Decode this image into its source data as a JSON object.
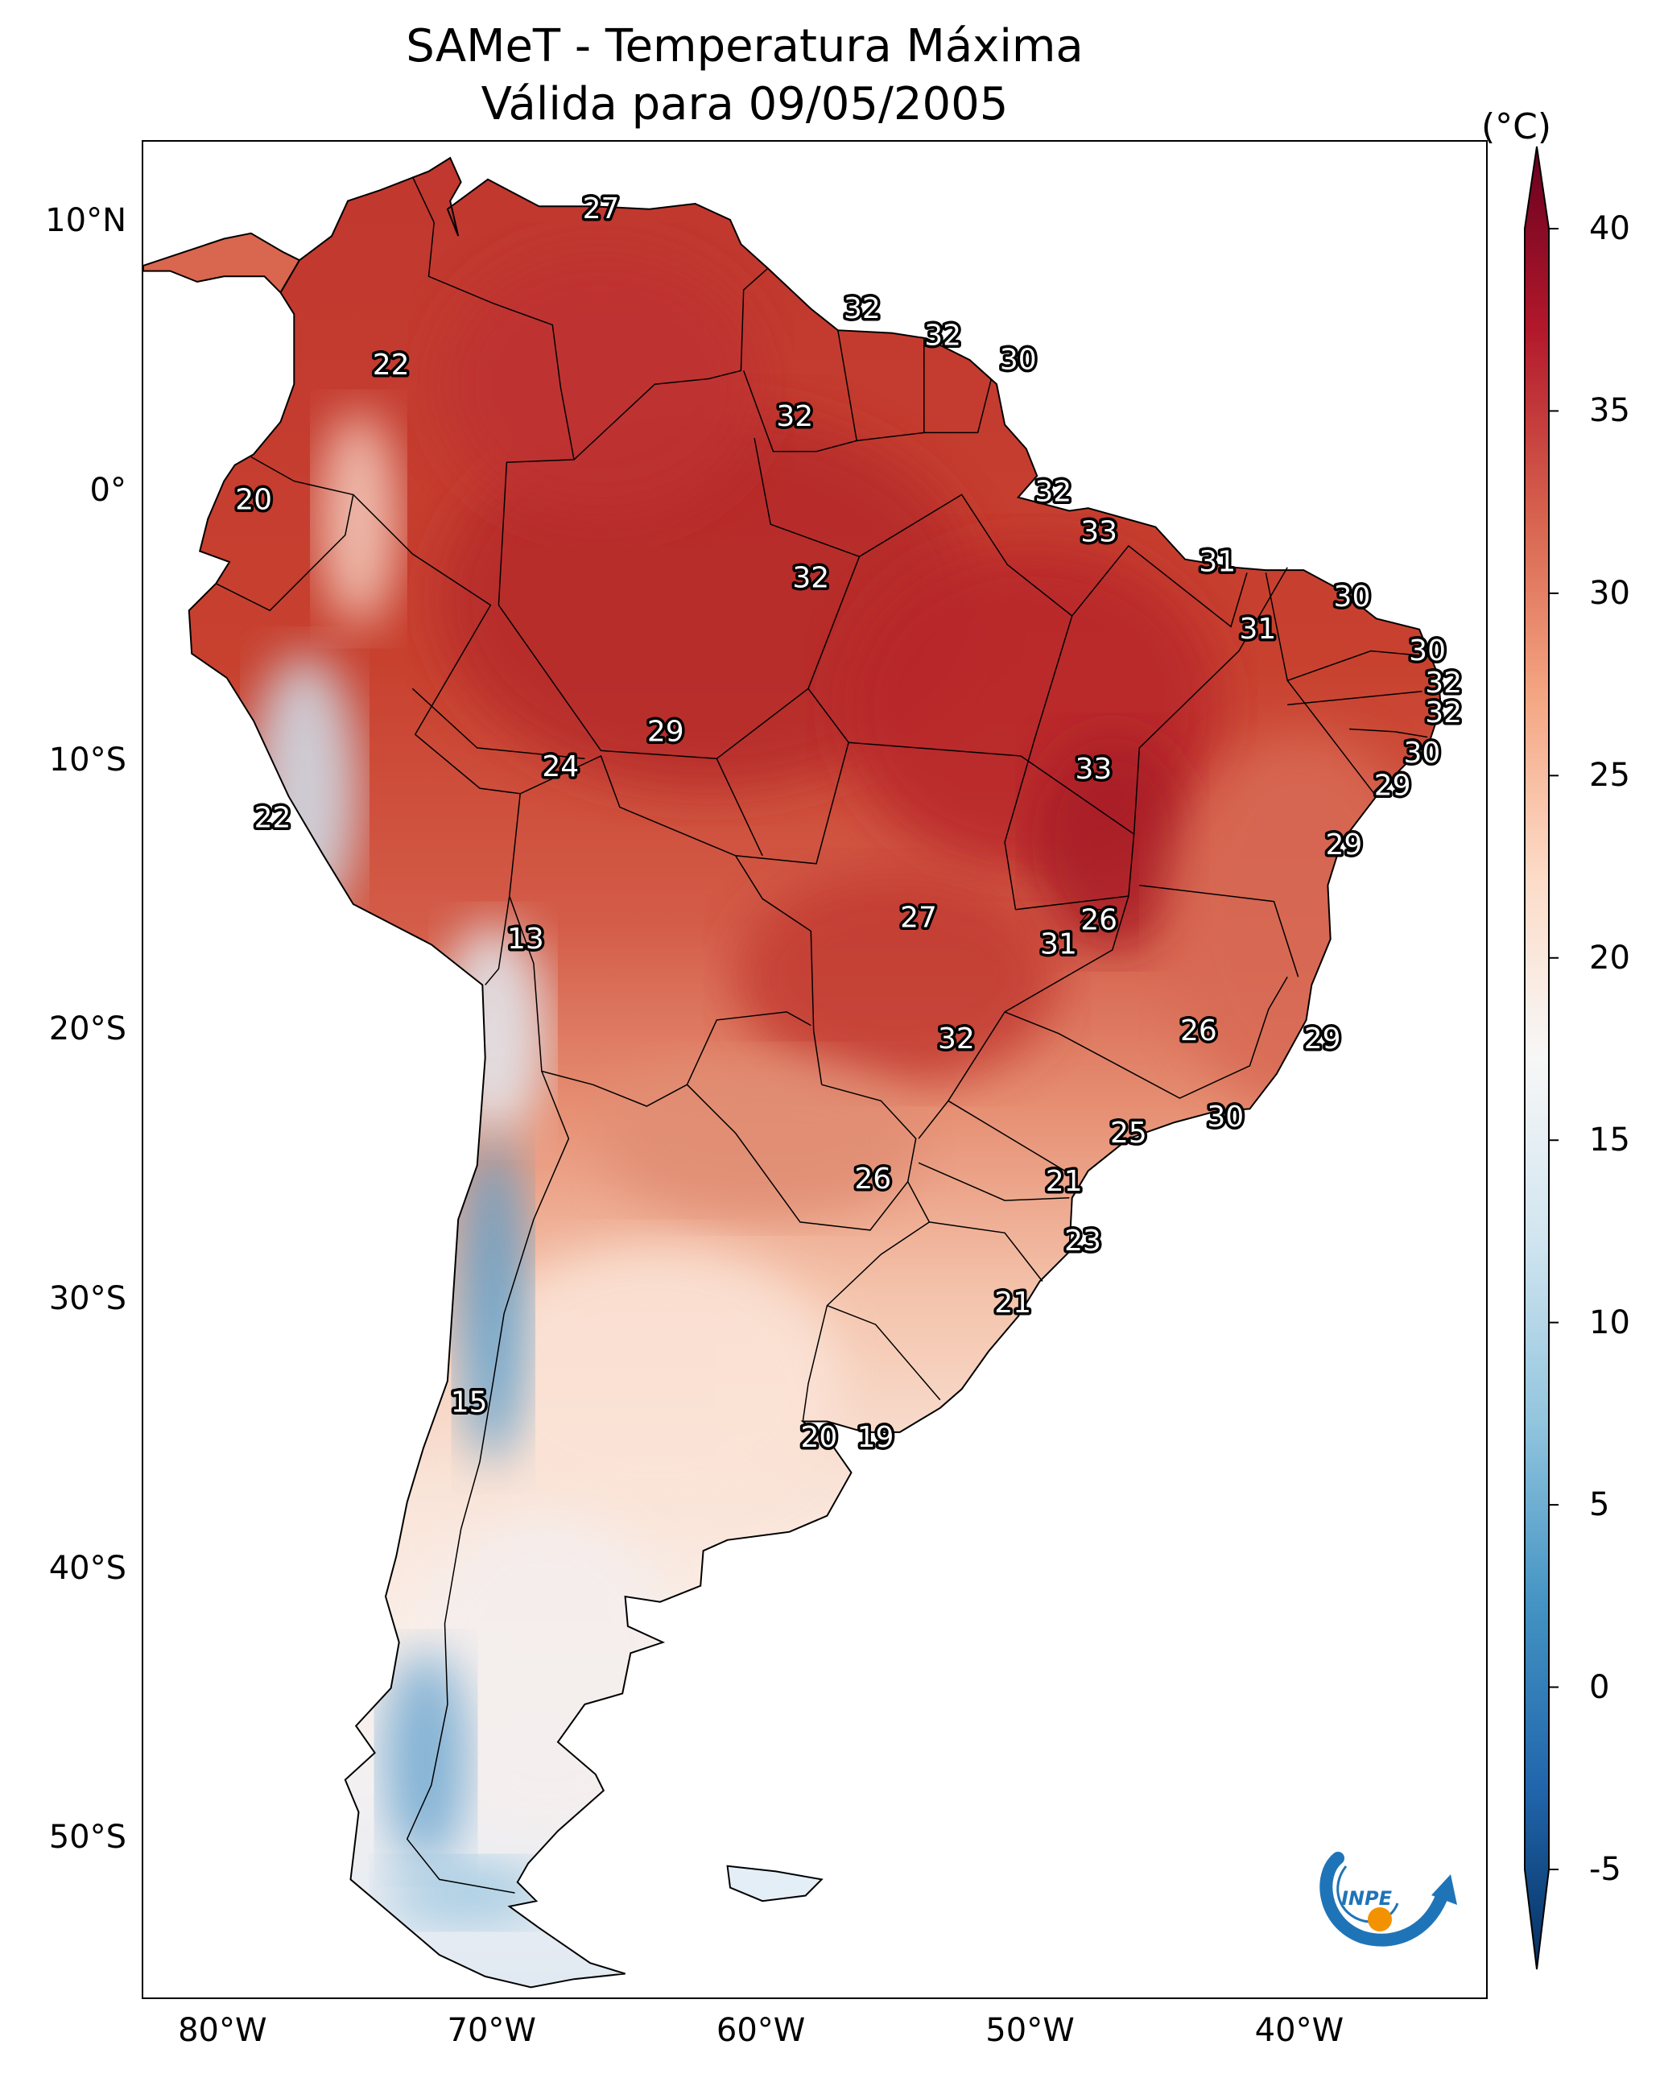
{
  "title": {
    "line1": "SAMeT - Temperatura Máxima",
    "line2": "Válida para 09/05/2005"
  },
  "lat_axis": {
    "ticks": [
      {
        "value": 10,
        "label": "10°N"
      },
      {
        "value": 0,
        "label": "0°"
      },
      {
        "value": -10,
        "label": "10°S"
      },
      {
        "value": -20,
        "label": "20°S"
      },
      {
        "value": -30,
        "label": "30°S"
      },
      {
        "value": -40,
        "label": "40°S"
      },
      {
        "value": -50,
        "label": "50°S"
      }
    ]
  },
  "lon_axis": {
    "ticks": [
      {
        "value": -80,
        "label": "80°W"
      },
      {
        "value": -70,
        "label": "70°W"
      },
      {
        "value": -60,
        "label": "60°W"
      },
      {
        "value": -50,
        "label": "50°W"
      },
      {
        "value": -40,
        "label": "40°W"
      }
    ]
  },
  "map_extent": {
    "lon_min": -83,
    "lon_max": -33,
    "lat_min": -56,
    "lat_max": 13
  },
  "colorbar": {
    "unit": "(°C)",
    "min": -5,
    "max": 40,
    "extend": "both",
    "ticks": [
      {
        "value": 40,
        "label": "40"
      },
      {
        "value": 35,
        "label": "35"
      },
      {
        "value": 30,
        "label": "30"
      },
      {
        "value": 25,
        "label": "25"
      },
      {
        "value": 20,
        "label": "20"
      },
      {
        "value": 15,
        "label": "15"
      },
      {
        "value": 10,
        "label": "10"
      },
      {
        "value": 5,
        "label": "5"
      },
      {
        "value": 0,
        "label": "0"
      },
      {
        "value": -5,
        "label": "-5"
      }
    ],
    "colormap": "RdBu_r",
    "colors": [
      "#053061",
      "#2166ac",
      "#4393c3",
      "#92c5de",
      "#d1e5f0",
      "#f7f7f7",
      "#fddbc7",
      "#f4a582",
      "#d6604d",
      "#b2182b",
      "#67001f"
    ]
  },
  "temperature_labels": [
    {
      "lon": -66.0,
      "lat": 10.5,
      "text": "27"
    },
    {
      "lon": -56.3,
      "lat": 6.8,
      "text": "32"
    },
    {
      "lon": -53.3,
      "lat": 5.8,
      "text": "32"
    },
    {
      "lon": -50.5,
      "lat": 4.9,
      "text": "30"
    },
    {
      "lon": -73.8,
      "lat": 4.7,
      "text": "22"
    },
    {
      "lon": -58.8,
      "lat": 2.8,
      "text": "32"
    },
    {
      "lon": -78.9,
      "lat": -0.3,
      "text": "20"
    },
    {
      "lon": -49.2,
      "lat": 0.0,
      "text": "32"
    },
    {
      "lon": -47.5,
      "lat": -1.5,
      "text": "33"
    },
    {
      "lon": -43.1,
      "lat": -2.6,
      "text": "31"
    },
    {
      "lon": -58.2,
      "lat": -3.2,
      "text": "32"
    },
    {
      "lon": -38.1,
      "lat": -3.9,
      "text": "30"
    },
    {
      "lon": -41.6,
      "lat": -5.1,
      "text": "31"
    },
    {
      "lon": -35.3,
      "lat": -5.9,
      "text": "30"
    },
    {
      "lon": -34.7,
      "lat": -7.1,
      "text": "32"
    },
    {
      "lon": -34.7,
      "lat": -8.2,
      "text": "32"
    },
    {
      "lon": -63.6,
      "lat": -8.9,
      "text": "29"
    },
    {
      "lon": -35.5,
      "lat": -9.7,
      "text": "30"
    },
    {
      "lon": -67.5,
      "lat": -10.2,
      "text": "24"
    },
    {
      "lon": -47.7,
      "lat": -10.3,
      "text": "33"
    },
    {
      "lon": -36.6,
      "lat": -10.9,
      "text": "29"
    },
    {
      "lon": -78.2,
      "lat": -12.1,
      "text": "22"
    },
    {
      "lon": -38.4,
      "lat": -13.1,
      "text": "29"
    },
    {
      "lon": -54.2,
      "lat": -15.8,
      "text": "27"
    },
    {
      "lon": -47.5,
      "lat": -15.9,
      "text": "26"
    },
    {
      "lon": -49.0,
      "lat": -16.8,
      "text": "31"
    },
    {
      "lon": -68.8,
      "lat": -16.6,
      "text": "13"
    },
    {
      "lon": -43.8,
      "lat": -20.0,
      "text": "26"
    },
    {
      "lon": -39.2,
      "lat": -20.3,
      "text": "29"
    },
    {
      "lon": -52.8,
      "lat": -20.3,
      "text": "32"
    },
    {
      "lon": -42.8,
      "lat": -23.2,
      "text": "30"
    },
    {
      "lon": -46.4,
      "lat": -23.8,
      "text": "25"
    },
    {
      "lon": -55.9,
      "lat": -25.5,
      "text": "26"
    },
    {
      "lon": -48.8,
      "lat": -25.6,
      "text": "21"
    },
    {
      "lon": -48.1,
      "lat": -27.8,
      "text": "23"
    },
    {
      "lon": -50.7,
      "lat": -30.1,
      "text": "21"
    },
    {
      "lon": -70.9,
      "lat": -33.8,
      "text": "15"
    },
    {
      "lon": -57.9,
      "lat": -35.1,
      "text": "20"
    },
    {
      "lon": -55.8,
      "lat": -35.1,
      "text": "19"
    }
  ],
  "logo": {
    "text": "INPE",
    "colors": {
      "arrow": "#1f74b8",
      "sun": "#f39200"
    }
  }
}
